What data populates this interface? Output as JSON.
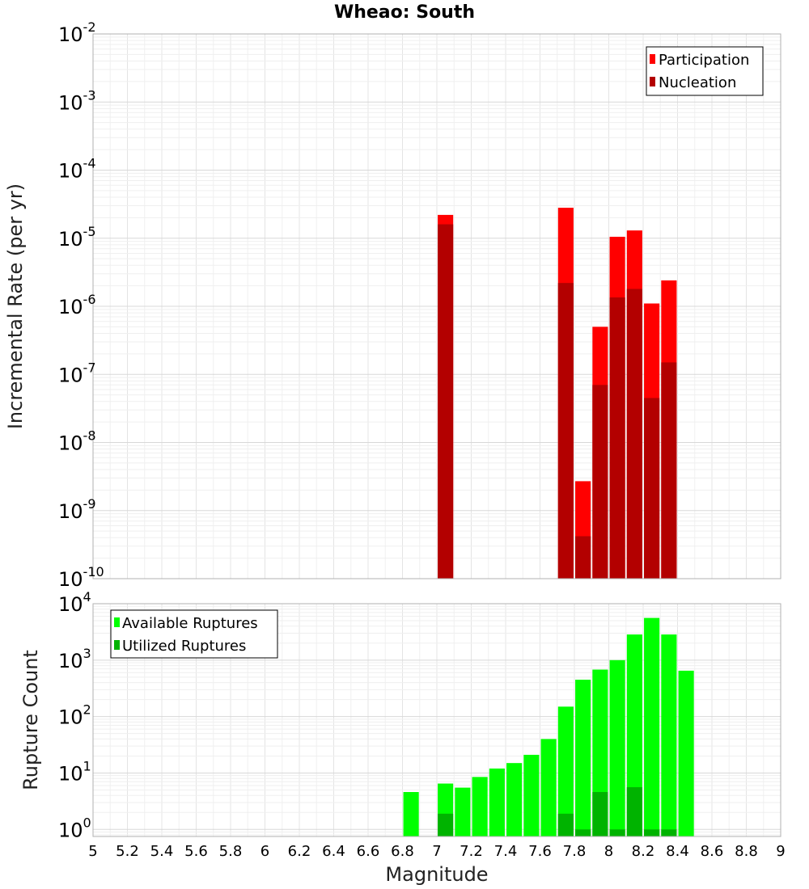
{
  "chart_data": [
    {
      "type": "bar",
      "title": "Wheao: South",
      "xlabel": "",
      "ylabel": "Incremental Rate (per yr)",
      "yscale": "log",
      "ylim": [
        1e-10,
        0.01
      ],
      "ytick_exponents": [
        "-2",
        "-3",
        "-4",
        "-5",
        "-6",
        "-7",
        "-8",
        "-9",
        "-10"
      ],
      "ytick_base": "10",
      "xlim": [
        5,
        9
      ],
      "bar_width": 0.09,
      "legend": {
        "position": "top-right",
        "entries": [
          "Participation",
          "Nucleation"
        ]
      },
      "series": [
        {
          "name": "Participation",
          "color": "#ff0000",
          "x": [
            7.05,
            7.75,
            7.85,
            7.95,
            8.05,
            8.15,
            8.25,
            8.35
          ],
          "values": [
            2.2e-05,
            2.8e-05,
            2.7e-09,
            5e-07,
            1.05e-05,
            1.3e-05,
            1.1e-06,
            2.4e-06
          ]
        },
        {
          "name": "Nucleation",
          "color": "#b30000",
          "x": [
            7.05,
            7.75,
            7.85,
            7.95,
            8.05,
            8.15,
            8.25,
            8.35
          ],
          "values": [
            1.6e-05,
            2.2e-06,
            4.2e-10,
            7e-08,
            1.35e-06,
            1.8e-06,
            4.5e-08,
            1.5e-07
          ]
        }
      ]
    },
    {
      "type": "bar",
      "title": "",
      "xlabel": "Magnitude",
      "ylabel": "Rupture Count",
      "yscale": "log",
      "ylim": [
        0.75,
        10000
      ],
      "ytick_exponents": [
        "4",
        "3",
        "2",
        "1",
        "0"
      ],
      "ytick_base": "10",
      "xlim": [
        5,
        9
      ],
      "xticks": [
        "5",
        "5.2",
        "5.4",
        "5.6",
        "5.8",
        "6",
        "6.2",
        "6.4",
        "6.6",
        "6.8",
        "7",
        "7.2",
        "7.4",
        "7.6",
        "7.8",
        "8",
        "8.2",
        "8.4",
        "8.6",
        "8.8",
        "9"
      ],
      "bar_width": 0.09,
      "legend": {
        "position": "top-left",
        "entries": [
          "Available Ruptures",
          "Utilized Ruptures"
        ]
      },
      "series": [
        {
          "name": "Available Ruptures",
          "color": "#00ff00",
          "x": [
            6.85,
            7.05,
            7.15,
            7.25,
            7.35,
            7.45,
            7.55,
            7.65,
            7.75,
            7.85,
            7.95,
            8.05,
            8.15,
            8.25,
            8.35,
            8.45
          ],
          "values": [
            4.6,
            6.5,
            5.5,
            8.5,
            12,
            15,
            21,
            40,
            150,
            450,
            680,
            1000,
            2850,
            5600,
            2850,
            650
          ]
        },
        {
          "name": "Utilized Ruptures",
          "color": "#00b300",
          "x": [
            7.05,
            7.75,
            7.85,
            7.95,
            8.05,
            8.15,
            8.25,
            8.35
          ],
          "values": [
            1.9,
            1.9,
            1.0,
            4.6,
            1.0,
            5.6,
            1.0,
            1.0
          ]
        }
      ]
    }
  ]
}
